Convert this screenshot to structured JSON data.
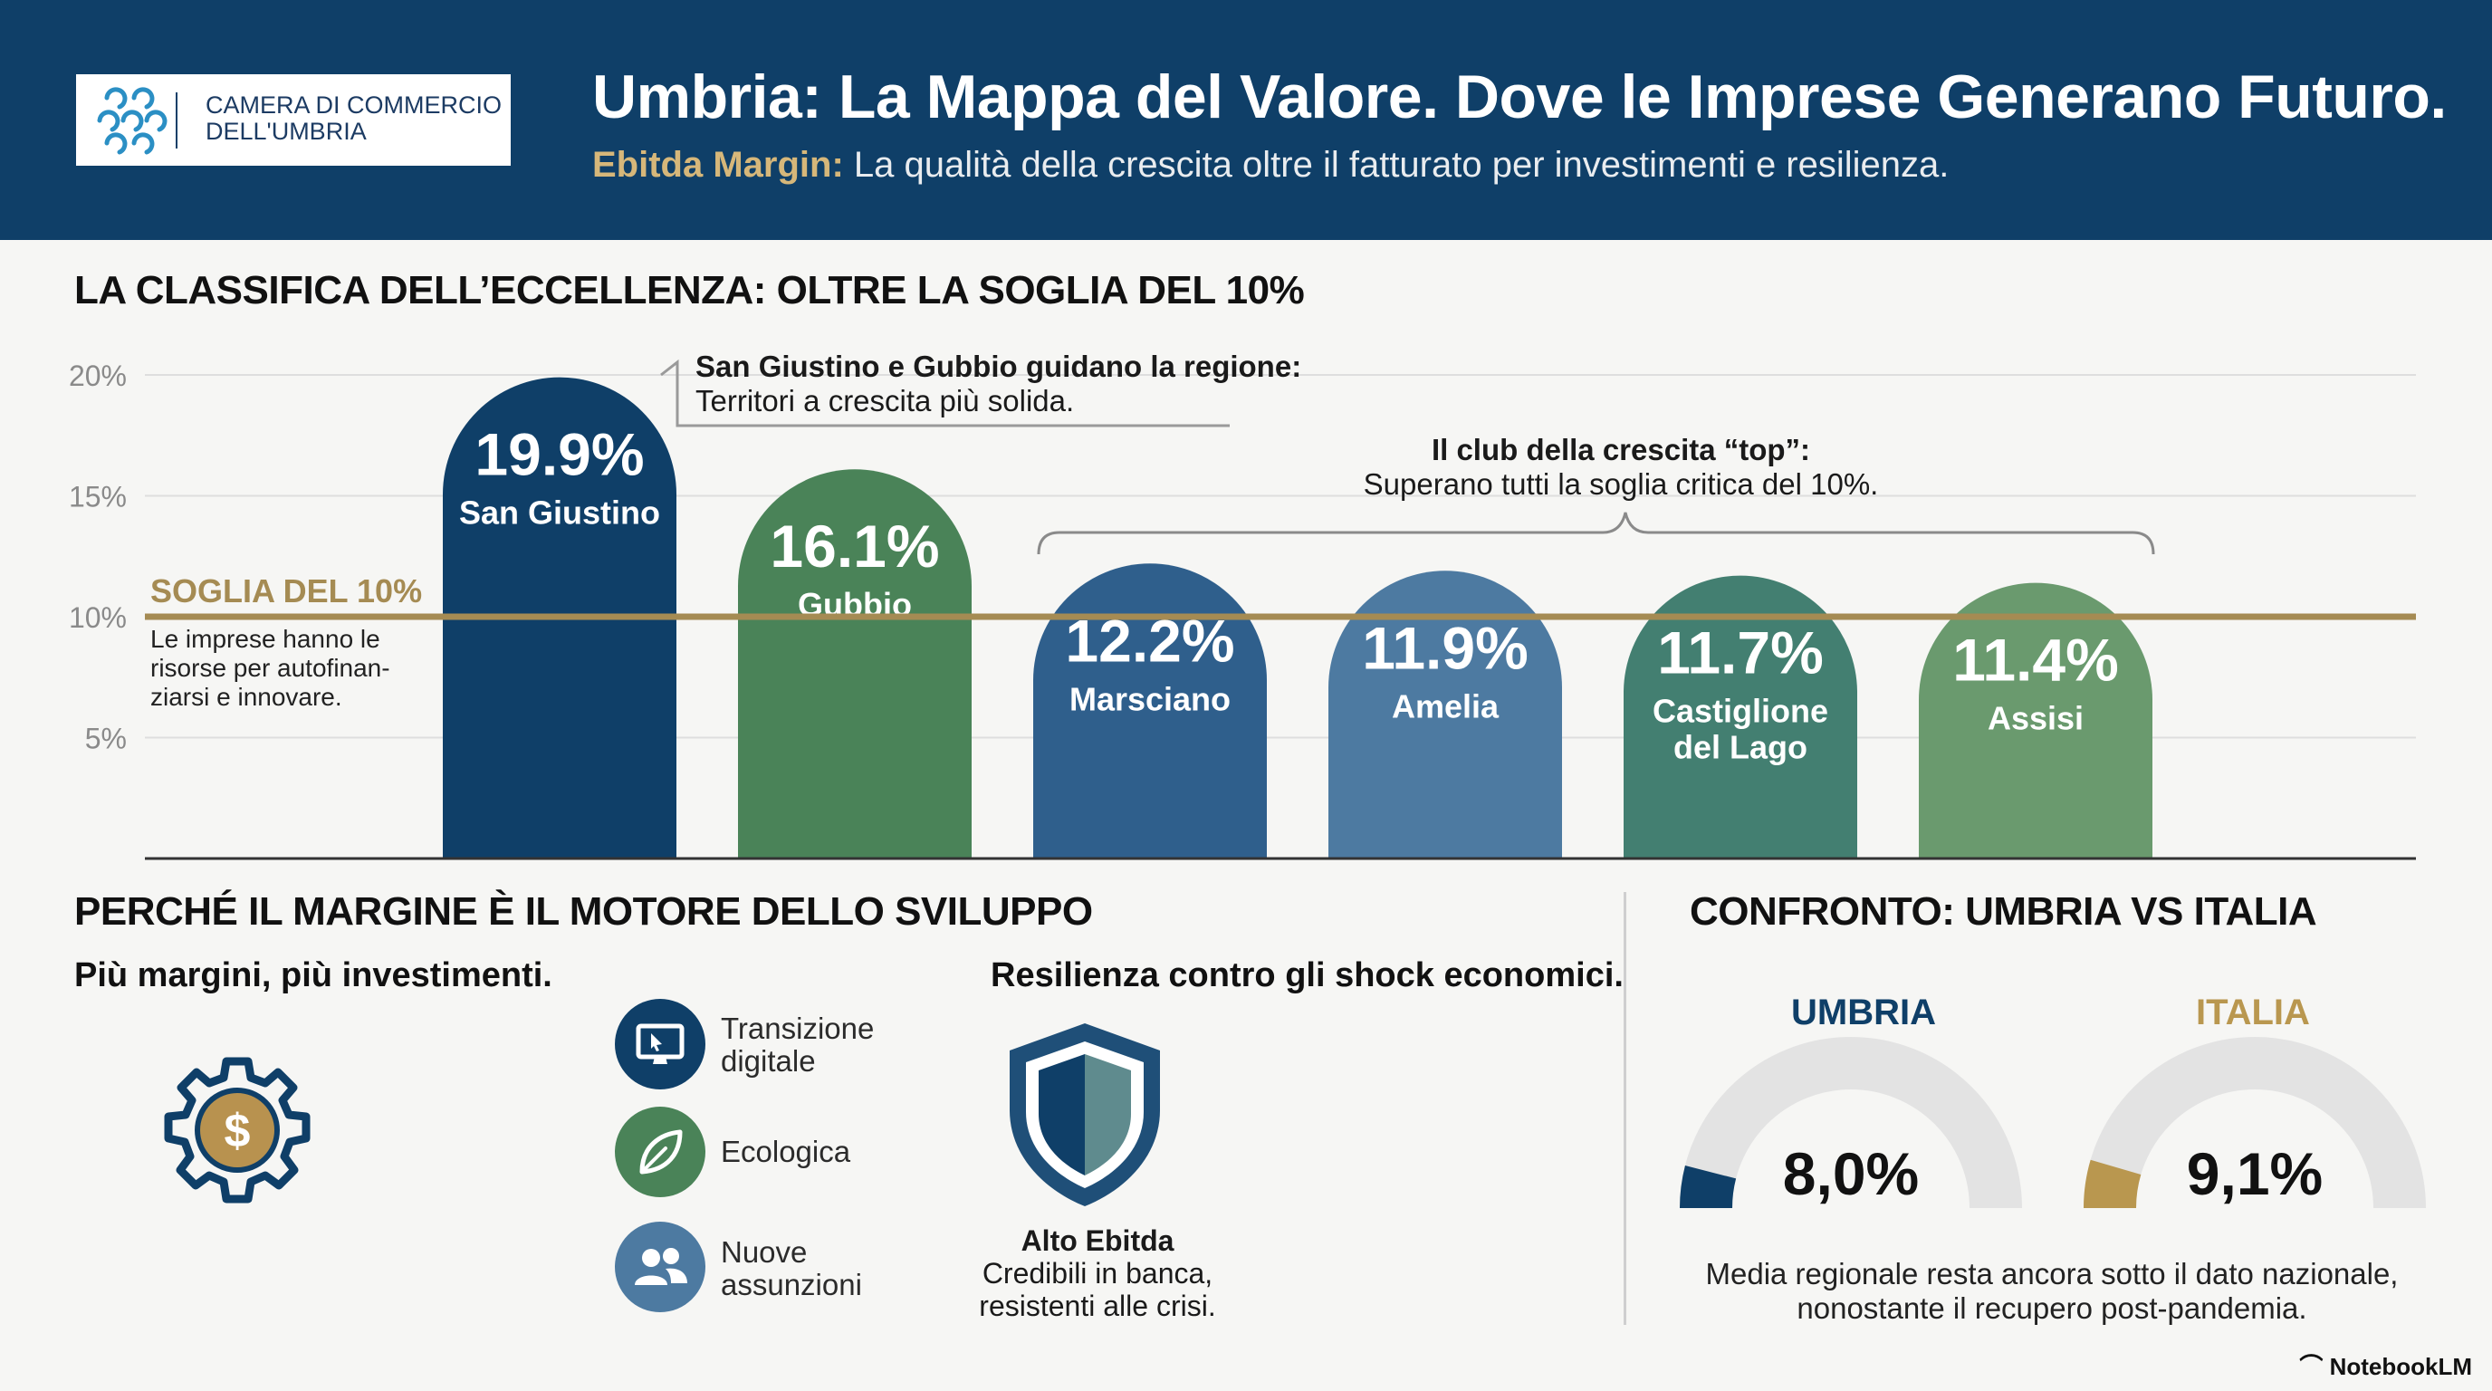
{
  "header": {
    "logo_line1": "CAMERA DI COMMERCIO",
    "logo_line2": "DELL'UMBRIA",
    "title": "Umbria: La Mappa del Valore. Dove le Imprese Generano Futuro.",
    "subtitle_highlight": "Ebitda Margin:",
    "subtitle_rest": " La qualità della crescita oltre il fatturato per investimenti e resilienza."
  },
  "ranking": {
    "section_title": "LA CLASSIFICA DELL’ECCELLENZA: OLTRE LA SOGLIA DEL 10%",
    "threshold_title": "SOGLIA DEL 10%",
    "threshold_desc": [
      "Le imprese hanno le",
      "risorse per autofinan-",
      "ziarsi e innovare."
    ],
    "callout1_bold": "San Giustino e Gubbio guidano la regione:",
    "callout1_text": "Territori a crescita più solida.",
    "callout2_bold": "Il club della crescita “top”:",
    "callout2_text": "Superano tutti la soglia critica del 10%."
  },
  "chart_data": {
    "type": "bar",
    "categories": [
      "San Giustino",
      "Gubbio",
      "Marsciano",
      "Amelia",
      "Castiglione del Lago",
      "Assisi"
    ],
    "category_lines": [
      [
        "San Giustino"
      ],
      [
        "Gubbio"
      ],
      [
        "Marsciano"
      ],
      [
        "Amelia"
      ],
      [
        "Castiglione",
        "del Lago"
      ],
      [
        "Assisi"
      ]
    ],
    "values": [
      19.9,
      16.1,
      12.2,
      11.9,
      11.7,
      11.4
    ],
    "value_labels": [
      "19.9%",
      "16.1%",
      "12.2%",
      "11.9%",
      "11.7%",
      "11.4%"
    ],
    "bar_colors": [
      "#0f3f68",
      "#4a8358",
      "#2f5f8c",
      "#4d7aa1",
      "#437f71",
      "#6a9a6e"
    ],
    "y_ticks": [
      5,
      10,
      15,
      20
    ],
    "y_tick_labels": [
      "5%",
      "10%",
      "15%",
      "20%"
    ],
    "ylim": [
      0,
      20
    ],
    "threshold": 10,
    "threshold_color": "#a58b53",
    "grid": true
  },
  "engine": {
    "section_title": "PERCHÉ IL MARGINE È IL MOTORE DELLO SVILUPPO",
    "col1_title": "Più margini, più investimenti.",
    "items": [
      {
        "label_lines": [
          "Transizione",
          "digitale"
        ],
        "icon": "monitor-icon",
        "color": "#0f3f68"
      },
      {
        "label_lines": [
          "Ecologica"
        ],
        "icon": "leaf-icon",
        "color": "#4a8358"
      },
      {
        "label_lines": [
          "Nuove",
          "assunzioni"
        ],
        "icon": "people-icon",
        "color": "#4d7aa1"
      }
    ],
    "col2_title": "Resilienza contro gli shock economici.",
    "shield_title": "Alto Ebitda",
    "shield_text_lines": [
      "Credibili in banca,",
      "resistenti alle crisi."
    ]
  },
  "comparison": {
    "section_title": "CONFRONTO: UMBRIA VS ITALIA",
    "umbria_label": "UMBRIA",
    "umbria_value": "8,0%",
    "umbria_fraction": 0.08,
    "umbria_color": "#0f3f68",
    "italia_label": "ITALIA",
    "italia_value": "9,1%",
    "italia_fraction": 0.091,
    "italia_color": "#b9974f",
    "note_lines": [
      "Media regionale resta ancora sotto il dato nazionale,",
      "nonostante il recupero post-pandemia."
    ]
  },
  "brand": "NotebookLM"
}
